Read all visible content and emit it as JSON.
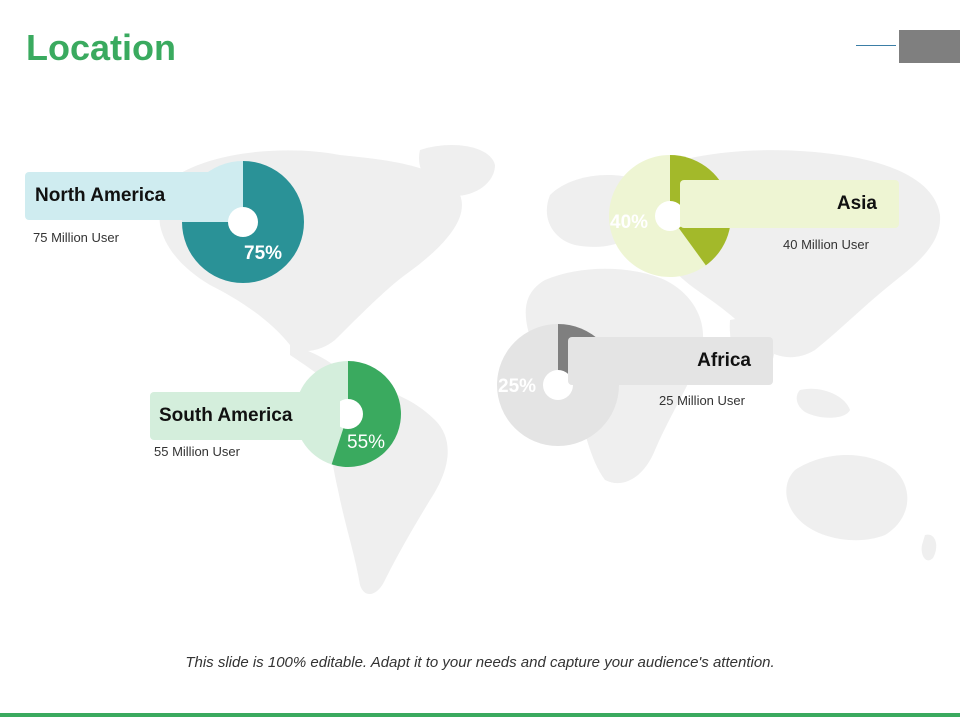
{
  "title": "Location",
  "caption": "This slide is 100% editable. Adapt it to your needs and capture your audience's attention.",
  "colors": {
    "title": "#3aaa5f",
    "bottom_bar": "#3aaa5f",
    "map": "#efefef"
  },
  "chart_data": {
    "type": "pie",
    "series": [
      {
        "label": "North America",
        "users": "75 Million User",
        "value": 75,
        "value_label": "75%",
        "color": "#2a9297",
        "light_color": "#cfecf0"
      },
      {
        "label": "Asia",
        "users": "40 Million User",
        "value": 40,
        "value_label": "40%",
        "color": "#a3b92a",
        "light_color": "#eef5d3"
      },
      {
        "label": "Africa",
        "users": "25 Million User",
        "value": 25,
        "value_label": "25%",
        "color": "#7f7f7f",
        "light_color": "#e4e4e4"
      },
      {
        "label": "South America",
        "users": "55 Million User",
        "value": 55,
        "value_label": "55%",
        "color": "#3aaa5f",
        "light_color": "#d4eedc"
      }
    ]
  }
}
